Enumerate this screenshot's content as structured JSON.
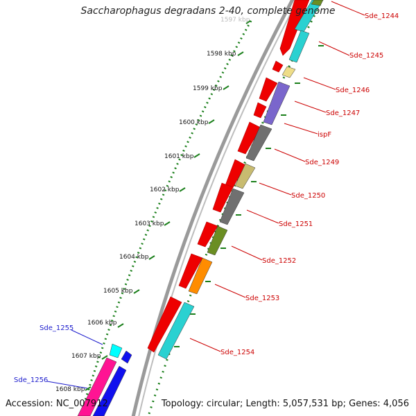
{
  "title": "Saccharophagus degradans 2-40, complete genome",
  "accession": "Accession: NC_007912",
  "topology": "Topology: circular; Length: 5,057,531 bp; Genes: 4,056",
  "colors": {
    "backbone": "#8c8c8c",
    "tick": "#1a7f1a",
    "forward_label": "#cc0000",
    "reverse_label": "#1a1acc"
  },
  "ticks": [
    "1597 kbp",
    "1598 kbp",
    "1599 kbp",
    "1600 kbp",
    "1601 kbp",
    "1602 kbp",
    "1603 kbp",
    "1604 kbp",
    "1605 kbp",
    "1606 kbp",
    "1607 kbp",
    "1608 kbp"
  ],
  "genes": [
    {
      "name": "Sde_1244",
      "color": "#2ad1d1"
    },
    {
      "name": "Sde_1245",
      "color": "#2ad1d1"
    },
    {
      "name": "Sde_1246",
      "color": "#eedd88"
    },
    {
      "name": "Sde_1247",
      "color": "#7a66cc"
    },
    {
      "name": "ispF",
      "color": "#707070"
    },
    {
      "name": "Sde_1249",
      "color": "#707070"
    },
    {
      "name": "Sde_1250",
      "color": "#c8bb70"
    },
    {
      "name": "Sde_1251",
      "color": "#707070"
    },
    {
      "name": "Sde_1252",
      "color": "#6b8e23"
    },
    {
      "name": "Sde_1253",
      "color": "#ff8c00"
    },
    {
      "name": "Sde_1254",
      "color": "#2ad1d1"
    },
    {
      "name": "Sde_1255",
      "color": "#00ffff"
    },
    {
      "name": "Sde_1256",
      "color": "#1010ee"
    }
  ]
}
